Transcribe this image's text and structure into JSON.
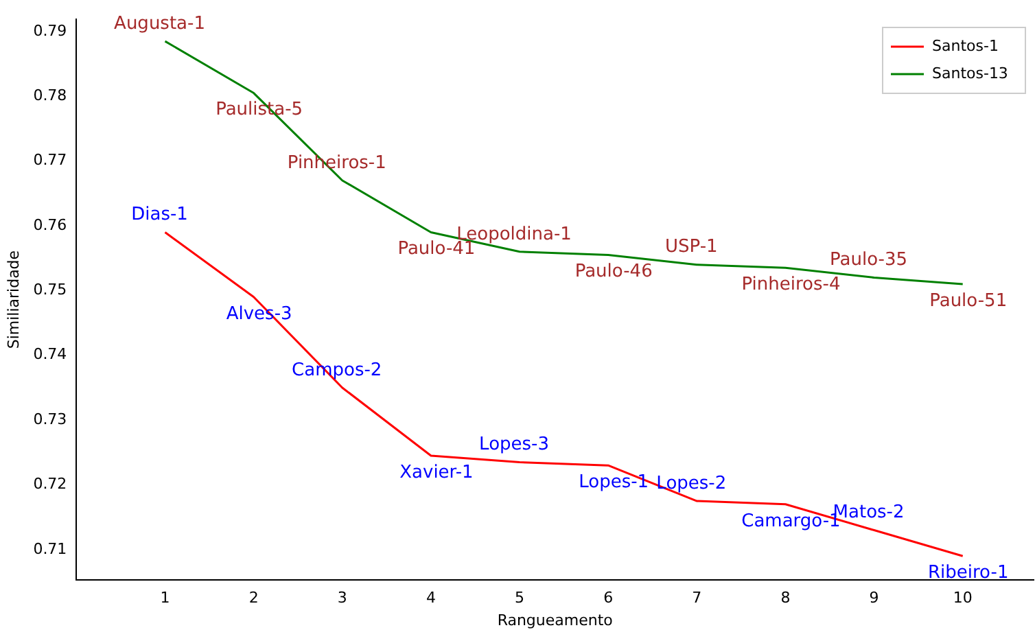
{
  "chart_data": {
    "type": "line",
    "xlabel": "Rangueamento",
    "ylabel": "Similiaridade",
    "x": [
      1,
      2,
      3,
      4,
      5,
      6,
      7,
      8,
      9,
      10
    ],
    "series": [
      {
        "name": "Santos-1",
        "color": "#ff0000",
        "values": [
          0.759,
          0.749,
          0.735,
          0.7245,
          0.7235,
          0.723,
          0.7175,
          0.717,
          0.713,
          0.709
        ]
      },
      {
        "name": "Santos-13",
        "color": "#008000",
        "values": [
          0.7885,
          0.7805,
          0.767,
          0.759,
          0.756,
          0.7555,
          0.754,
          0.7535,
          0.752,
          0.751
        ]
      }
    ],
    "xlim": [
      0,
      10.8
    ],
    "xticks": [
      1,
      2,
      3,
      4,
      5,
      6,
      7,
      8,
      9,
      10
    ],
    "ylim": [
      0.7053,
      0.7919
    ],
    "yticks": [
      0.71,
      0.72,
      0.73,
      0.74,
      0.75,
      0.76,
      0.77,
      0.78,
      0.79
    ],
    "grid": false,
    "legend": "top right",
    "marker": "none",
    "line_style": "solid",
    "annotations": [
      {
        "text": "Dias-1",
        "x": 1,
        "y": 0.759
      },
      {
        "text": "Alves-3",
        "x": 2,
        "y": 0.749
      },
      {
        "text": "Campos-2",
        "x": 3,
        "y": 0.735
      },
      {
        "text": "Xavier-1",
        "x": 4,
        "y": 0.7245
      },
      {
        "text": "Lopes-3",
        "x": 5,
        "y": 0.7235
      },
      {
        "text": "Lopes-1",
        "x": 6,
        "y": 0.723
      },
      {
        "text": "Lopes-2",
        "x": 7,
        "y": 0.7175
      },
      {
        "text": "Camargo-1",
        "x": 8,
        "y": 0.717
      },
      {
        "text": "Matos-2",
        "x": 9,
        "y": 0.713
      },
      {
        "text": "Ribeiro-1",
        "x": 10,
        "y": 0.709
      },
      {
        "text": "Augusta-1",
        "x": 1,
        "y": 0.7885
      },
      {
        "text": "Paulista-5",
        "x": 2,
        "y": 0.7805
      },
      {
        "text": "Pinheiros-1",
        "x": 3,
        "y": 0.767
      },
      {
        "text": "Paulo-41",
        "x": 4,
        "y": 0.759
      },
      {
        "text": "Leopoldina-1",
        "x": 5,
        "y": 0.756
      },
      {
        "text": "Paulo-46",
        "x": 6,
        "y": 0.7555
      },
      {
        "text": "USP-1",
        "x": 7,
        "y": 0.754
      },
      {
        "text": "Pinheiros-4",
        "x": 8,
        "y": 0.7535
      },
      {
        "text": "Paulo-35",
        "x": 9,
        "y": 0.752
      },
      {
        "text": "Paulo-51",
        "x": 10,
        "y": 0.751
      }
    ]
  }
}
